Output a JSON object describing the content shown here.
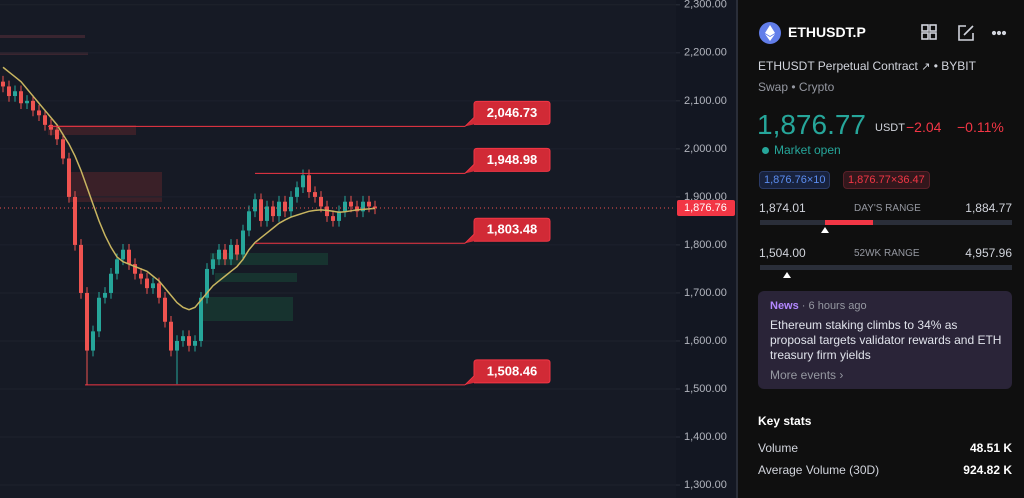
{
  "chart_data": {
    "type": "candlestick",
    "ylim": [
      1273,
      2310
    ],
    "yticks": [
      {
        "value": 2300,
        "label": "2,300.00"
      },
      {
        "value": 2200,
        "label": "2,200.00"
      },
      {
        "value": 2100,
        "label": "2,100.00"
      },
      {
        "value": 2000,
        "label": "2,000.00"
      },
      {
        "value": 1900,
        "label": "1,900.00"
      },
      {
        "value": 1800,
        "label": "1,800.00"
      },
      {
        "value": 1700,
        "label": "1,700.00"
      },
      {
        "value": 1600,
        "label": "1,600.00"
      },
      {
        "value": 1500,
        "label": "1,500.00"
      },
      {
        "value": 1400,
        "label": "1,400.00"
      },
      {
        "value": 1300,
        "label": "1,300.00"
      }
    ],
    "up_color": "#26a69a",
    "down_color": "#ef5350",
    "open": [
      2140,
      2130,
      2110,
      2120,
      2095,
      2100,
      2080,
      2070,
      2050,
      2040,
      2020,
      1980,
      1900,
      1800,
      1700,
      1580,
      1620,
      1690,
      1700,
      1740,
      1770,
      1790,
      1760,
      1740,
      1730,
      1710,
      1720,
      1690,
      1640,
      1580,
      1600,
      1610,
      1590,
      1600,
      1690,
      1750,
      1770,
      1790,
      1770,
      1800,
      1780,
      1830,
      1870,
      1895,
      1850,
      1880,
      1860,
      1890,
      1870,
      1900,
      1920,
      1945,
      1910,
      1900,
      1880,
      1860,
      1850,
      1870,
      1890,
      1880,
      1870,
      1890,
      1880
    ],
    "high": [
      2152,
      2142,
      2132,
      2132,
      2112,
      2112,
      2092,
      2082,
      2062,
      2052,
      2032,
      1992,
      1912,
      1812,
      1712,
      1632,
      1702,
      1712,
      1752,
      1782,
      1802,
      1802,
      1772,
      1752,
      1742,
      1732,
      1732,
      1702,
      1652,
      1612,
      1622,
      1622,
      1612,
      1702,
      1762,
      1782,
      1802,
      1802,
      1812,
      1812,
      1842,
      1882,
      1907,
      1907,
      1892,
      1892,
      1902,
      1902,
      1912,
      1932,
      1957,
      1957,
      1922,
      1912,
      1892,
      1872,
      1882,
      1902,
      1902,
      1892,
      1902,
      1902,
      1892
    ],
    "low": [
      2118,
      2098,
      2098,
      2083,
      2083,
      2068,
      2058,
      2038,
      2028,
      2008,
      1968,
      1888,
      1788,
      1688,
      1508,
      1568,
      1608,
      1678,
      1688,
      1728,
      1758,
      1748,
      1728,
      1718,
      1698,
      1698,
      1678,
      1628,
      1568,
      1510,
      1588,
      1578,
      1578,
      1588,
      1678,
      1738,
      1758,
      1758,
      1758,
      1768,
      1768,
      1818,
      1858,
      1838,
      1838,
      1848,
      1848,
      1858,
      1858,
      1888,
      1908,
      1898,
      1888,
      1868,
      1848,
      1838,
      1838,
      1858,
      1868,
      1858,
      1858,
      1868,
      1864
    ],
    "close": [
      2130,
      2110,
      2120,
      2095,
      2100,
      2080,
      2070,
      2050,
      2040,
      2020,
      1980,
      1900,
      1800,
      1700,
      1580,
      1620,
      1690,
      1700,
      1740,
      1770,
      1790,
      1760,
      1740,
      1730,
      1710,
      1720,
      1690,
      1640,
      1580,
      1600,
      1610,
      1590,
      1600,
      1690,
      1750,
      1770,
      1790,
      1770,
      1800,
      1780,
      1830,
      1870,
      1895,
      1850,
      1880,
      1860,
      1890,
      1870,
      1900,
      1920,
      1945,
      1910,
      1900,
      1880,
      1860,
      1850,
      1870,
      1890,
      1880,
      1870,
      1890,
      1880,
      1876.76
    ],
    "ma": {
      "color": "#c8b560",
      "values": [
        2170,
        2160,
        2150,
        2140,
        2125,
        2110,
        2095,
        2080,
        2065,
        2050,
        2030,
        2010,
        1985,
        1955,
        1920,
        1885,
        1850,
        1820,
        1795,
        1775,
        1765,
        1760,
        1755,
        1750,
        1745,
        1735,
        1725,
        1710,
        1695,
        1680,
        1670,
        1665,
        1670,
        1685,
        1700,
        1715,
        1725,
        1735,
        1745,
        1755,
        1770,
        1790,
        1805,
        1815,
        1825,
        1835,
        1845,
        1852,
        1858,
        1862,
        1866,
        1870,
        1872,
        1873,
        1872,
        1870,
        1868,
        1869,
        1871,
        1873,
        1874,
        1875,
        1876
      ]
    },
    "levels": [
      {
        "value": 2046.73,
        "label": "2,046.73"
      },
      {
        "value": 1948.98,
        "label": "1,948.98"
      },
      {
        "value": 1803.48,
        "label": "1,803.48"
      },
      {
        "value": 1508.46,
        "label": "1,508.46"
      }
    ],
    "last_price": {
      "value": 1876.76,
      "label": "1,876.76"
    }
  },
  "sidebar": {
    "symbol": "ETHUSDT.P",
    "description": "ETHUSDT Perpetual Contract",
    "exchange": "BYBIT",
    "kind": "Swap",
    "market": "Crypto",
    "price": "1,876.77",
    "currency": "USDT",
    "change": "−2.04",
    "change_percent": "−0.11%",
    "status": "Market open",
    "bid": "1,876.76×10",
    "ask": "1,876.77×36.47",
    "day_range": {
      "low": "1,874.01",
      "label": "DAY'S RANGE",
      "high": "1,884.77"
    },
    "week52_range": {
      "low": "1,504.00",
      "label": "52WK RANGE",
      "high": "4,957.96"
    },
    "news": {
      "tag": "News",
      "time": "6 hours ago",
      "headline": "Ethereum staking climbs to 34% as proposal targets validator rewards and ETH treasury firm yields",
      "more": "More events"
    },
    "key_stats": {
      "title": "Key stats",
      "rows": [
        [
          "Volume",
          "48.51 K"
        ],
        [
          "Average Volume (30D)",
          "924.82 K"
        ]
      ]
    }
  }
}
